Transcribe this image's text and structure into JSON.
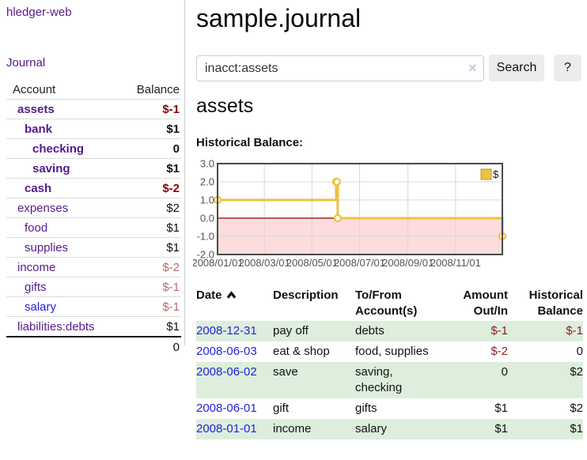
{
  "colors": {
    "link_purple": "#551a8b",
    "link_blue": "#2222dd",
    "negative_strong": "#8b0000",
    "negative_muted": "#b56a6a",
    "negative_table": "#8b2020",
    "row_green": "#ddeedd",
    "chart_line_yellow": "#edc240",
    "chart_negative_pink": "#fcdcdc",
    "chart_zero_line": "#8b0000"
  },
  "sidebar": {
    "app_title": "hledger-web",
    "journal_label": "Journal",
    "table": {
      "headers": {
        "account": "Account",
        "balance": "Balance"
      },
      "rows": [
        {
          "account": "assets",
          "indent": 1,
          "bold": true,
          "balance": "$-1"
        },
        {
          "account": "bank",
          "indent": 2,
          "bold": true,
          "balance": "$1"
        },
        {
          "account": "checking",
          "indent": 3,
          "bold": true,
          "balance": "0"
        },
        {
          "account": "saving",
          "indent": 3,
          "bold": true,
          "balance": "$1"
        },
        {
          "account": "cash",
          "indent": 2,
          "bold": true,
          "balance": "$-2"
        },
        {
          "account": "expenses",
          "indent": 1,
          "bold": false,
          "balance": "$2"
        },
        {
          "account": "food",
          "indent": 2,
          "bold": false,
          "balance": "$1"
        },
        {
          "account": "supplies",
          "indent": 2,
          "bold": false,
          "balance": "$1"
        },
        {
          "account": "income",
          "indent": 1,
          "bold": false,
          "balance": "$-2"
        },
        {
          "account": "gifts",
          "indent": 2,
          "bold": false,
          "balance": "$-1"
        },
        {
          "account": "salary",
          "indent": 2,
          "bold": false,
          "balance": "$-1",
          "blue": true
        },
        {
          "account": "liabilities:debts",
          "indent": 1,
          "bold": false,
          "balance": "$1"
        }
      ],
      "total": "0"
    }
  },
  "main": {
    "title": "sample.journal",
    "search": {
      "value": "inacct:assets",
      "clear_icon": "×",
      "button_label": "Search",
      "help_label": "?"
    },
    "account_heading": "assets",
    "chart_label": "Historical Balance:",
    "register": {
      "headers": {
        "date": "Date",
        "description": "Description",
        "accounts": "To/From Account(s)",
        "amount": "Amount Out/In",
        "balance": "Historical Balance"
      },
      "rows": [
        {
          "date": "2008-12-31",
          "description": "pay off",
          "accounts": "debts",
          "amount": "$-1",
          "balance": "$-1"
        },
        {
          "date": "2008-06-03",
          "description": "eat & shop",
          "accounts": "food, supplies",
          "amount": "$-2",
          "balance": "0"
        },
        {
          "date": "2008-06-02",
          "description": "save",
          "accounts": "saving, checking",
          "amount": "0",
          "balance": "$2"
        },
        {
          "date": "2008-06-01",
          "description": "gift",
          "accounts": "gifts",
          "amount": "$1",
          "balance": "$2"
        },
        {
          "date": "2008-01-01",
          "description": "income",
          "accounts": "salary",
          "amount": "$1",
          "balance": "$1"
        }
      ]
    }
  },
  "chart_data": {
    "type": "line",
    "title": "Historical Balance",
    "step": true,
    "series": [
      {
        "name": "$",
        "color": "#edc240",
        "points": [
          [
            "2008-01-01",
            1
          ],
          [
            "2008-06-01",
            2
          ],
          [
            "2008-06-02",
            2
          ],
          [
            "2008-06-03",
            0
          ],
          [
            "2008-12-31",
            -1
          ]
        ]
      }
    ],
    "legend": [
      {
        "label": "$",
        "color": "#edc240"
      }
    ],
    "legend_position": "top-right",
    "x_range": [
      "2008-01-01",
      "2008-12-31"
    ],
    "x_ticks": [
      "2008/01/01",
      "2008/03/01",
      "2008/05/01",
      "2008/07/01",
      "2008/09/01",
      "2008/11/01"
    ],
    "y_ticks": [
      3.0,
      2.0,
      1.0,
      0.0,
      -1.0,
      -2.0
    ],
    "ylim": [
      -2,
      3
    ],
    "grid": true,
    "negative_fill": "#fcdcdc",
    "zero_line_color": "#8b0000"
  }
}
